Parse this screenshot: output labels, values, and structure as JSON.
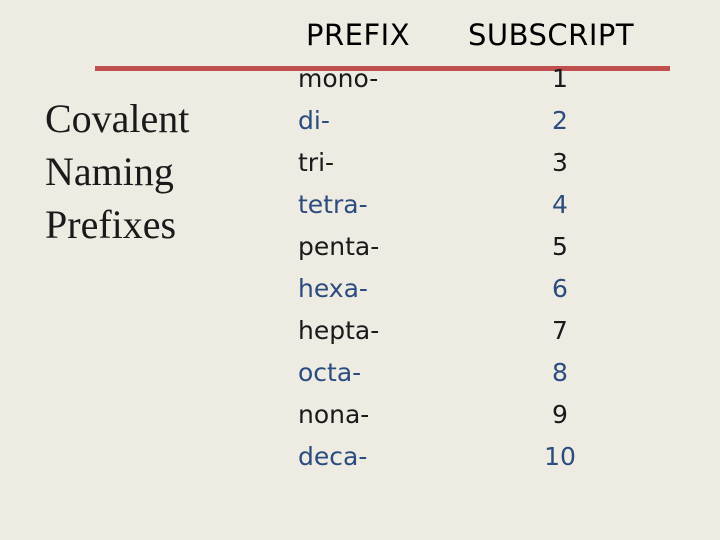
{
  "title_lines": [
    "Covalent",
    "Naming",
    "Prefixes"
  ],
  "headers": {
    "prefix": "PREFIX",
    "subscript": "SUBSCRIPT"
  },
  "colors": {
    "rule": "#c0504d",
    "text_dark": "#1a1a1a",
    "text_blue": "#2b4c7e",
    "background": "#eeebe3"
  },
  "rows": [
    {
      "prefix": "mono-",
      "subscript": "1"
    },
    {
      "prefix": "di-",
      "subscript": "2"
    },
    {
      "prefix": "tri-",
      "subscript": "3"
    },
    {
      "prefix": "tetra-",
      "subscript": "4"
    },
    {
      "prefix": "penta-",
      "subscript": "5"
    },
    {
      "prefix": "hexa-",
      "subscript": "6"
    },
    {
      "prefix": "hepta-",
      "subscript": "7"
    },
    {
      "prefix": "octa-",
      "subscript": "8"
    },
    {
      "prefix": "nona-",
      "subscript": "9"
    },
    {
      "prefix": "deca-",
      "subscript": "10"
    }
  ]
}
